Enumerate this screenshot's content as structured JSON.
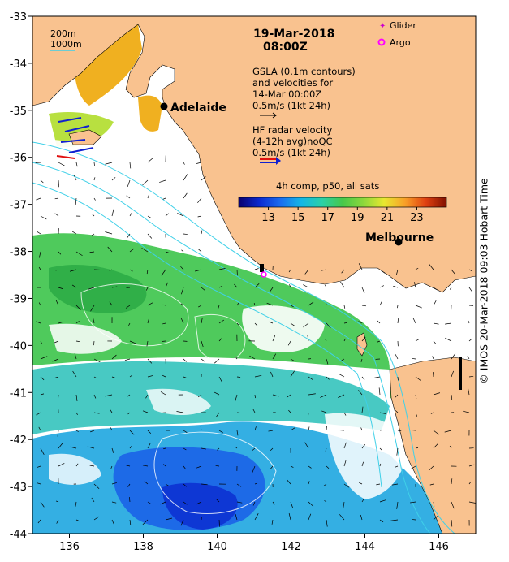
{
  "header": {
    "date": "19-Mar-2018",
    "time": "08:00Z"
  },
  "depth_legend": [
    "200m",
    "1000m"
  ],
  "platform_legend": {
    "glider_label": "Glider",
    "argo_label": "Argo",
    "glider_color": "#cc00cc",
    "argo_color": "#ff00ff"
  },
  "gsla_note": {
    "line1": "GSLA (0.1m contours)",
    "line2": "and velocities for",
    "line3": "14-Mar 00:00Z",
    "line4": "0.5m/s (1kt 24h)"
  },
  "hf_note": {
    "line1": "HF radar velocity",
    "line2": "(4-12h avg)noQC",
    "line3": "0.5m/s (1kt 24h)"
  },
  "sst_colorbar": {
    "title": "4h comp, p50, all sats",
    "min": 11,
    "max": 25,
    "tick_labels": [
      "13",
      "15",
      "17",
      "19",
      "21",
      "23"
    ],
    "tick_values": [
      13,
      15,
      17,
      19,
      21,
      23
    ]
  },
  "cities": [
    {
      "name": "Adelaide",
      "lon": 138.6,
      "lat": -34.93
    },
    {
      "name": "Melbourne",
      "lon": 144.96,
      "lat": -37.81
    }
  ],
  "axes": {
    "lon_range": [
      135,
      147
    ],
    "lat_range": [
      -44,
      -33
    ],
    "lon_ticks": [
      136,
      138,
      140,
      142,
      144,
      146
    ],
    "lon_labels": [
      "136",
      "138",
      "140",
      "142",
      "144",
      "146"
    ],
    "lat_ticks": [
      -33,
      -34,
      -35,
      -36,
      -37,
      -38,
      -39,
      -40,
      -41,
      -42,
      -43,
      -44
    ],
    "lat_labels": [
      "-33",
      "-34",
      "-35",
      "-36",
      "-37",
      "-38",
      "-39",
      "-40",
      "-41",
      "-42",
      "-43",
      "-44"
    ]
  },
  "credit": "©  IMOS 20-Mar-2018 09:03 Hobart Time",
  "colors": {
    "land": "#f9c28f",
    "depth_contour": "#3fd0e8",
    "frame": "#000000"
  }
}
